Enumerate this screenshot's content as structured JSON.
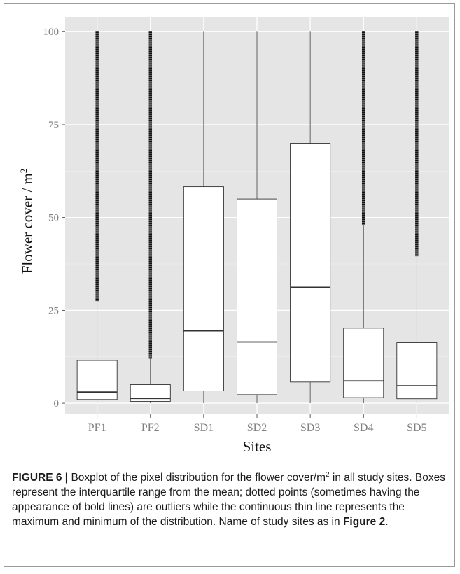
{
  "chart_data": {
    "type": "boxplot",
    "xlabel": "Sites",
    "ylabel": "Flower cover / m²",
    "ylabel_main": "Flower cover / m",
    "ylabel_sup": "2",
    "ylim": [
      -3,
      104
    ],
    "yticks": [
      0,
      25,
      50,
      75,
      100
    ],
    "grid": true,
    "categories": [
      "PF1",
      "PF2",
      "SD1",
      "SD2",
      "SD3",
      "SD4",
      "SD5"
    ],
    "boxes": [
      {
        "site": "PF1",
        "min": 0,
        "q1": 1,
        "median": 3,
        "q3": 11.5,
        "whisker_high": 27.5,
        "outliers_from": 27.5,
        "outliers_to": 100
      },
      {
        "site": "PF2",
        "min": 0,
        "q1": 0.5,
        "median": 1.3,
        "q3": 5,
        "whisker_high": 12,
        "outliers_from": 12,
        "outliers_to": 100
      },
      {
        "site": "SD1",
        "min": 0,
        "q1": 3.3,
        "median": 19.5,
        "q3": 58.3,
        "whisker_high": 100,
        "outliers_from": null,
        "outliers_to": null
      },
      {
        "site": "SD2",
        "min": 0,
        "q1": 2.3,
        "median": 16.5,
        "q3": 55,
        "whisker_high": 100,
        "outliers_from": null,
        "outliers_to": null
      },
      {
        "site": "SD3",
        "min": 0,
        "q1": 5.7,
        "median": 31.2,
        "q3": 70,
        "whisker_high": 100,
        "outliers_from": null,
        "outliers_to": null
      },
      {
        "site": "SD4",
        "min": 0,
        "q1": 1.5,
        "median": 6,
        "q3": 20.2,
        "whisker_high": 48,
        "outliers_from": 48,
        "outliers_to": 100
      },
      {
        "site": "SD5",
        "min": 0,
        "q1": 1.2,
        "median": 4.7,
        "q3": 16.3,
        "whisker_high": 39.5,
        "outliers_from": 39.5,
        "outliers_to": 100
      }
    ]
  },
  "caption": {
    "label": "FIGURE 6 |",
    "text_before_sup": " Boxplot of the pixel distribution for the flower cover/m",
    "sup": "2",
    "text_after_sup": " in all study sites. Boxes represent the interquartile range from the mean; dotted points (sometimes having the appearance of bold lines) are outliers while the continuous thin line represents the maximum and minimum of the distribution. Name of study sites as in ",
    "ref": "Figure 2",
    "end": "."
  },
  "colors": {
    "panel_bg": "#e5e5e5",
    "grid_major": "#ffffff",
    "box_fill": "#ffffff",
    "line": "#333333",
    "outlier": "#111111",
    "tick_text": "#7f7f7f",
    "axis_title": "#111111"
  }
}
